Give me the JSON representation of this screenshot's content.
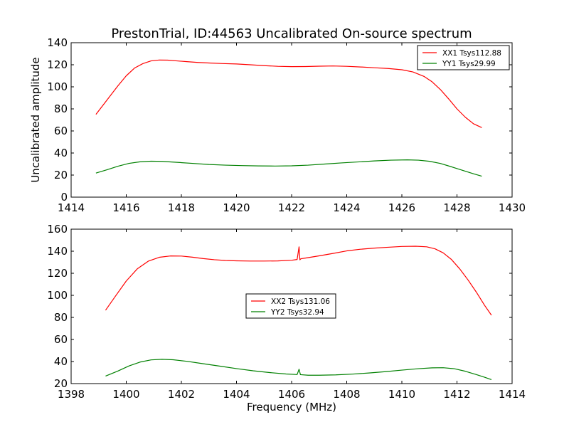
{
  "figure": {
    "title": "PrestonTrial, ID:44563 Uncalibrated On-source spectrum"
  },
  "chart_data": [
    {
      "type": "line",
      "title": "",
      "xlabel": "",
      "ylabel": "Uncalibrated amplitude",
      "xlim": [
        1414,
        1430
      ],
      "ylim": [
        0,
        140
      ],
      "xticks": [
        1414,
        1416,
        1418,
        1420,
        1422,
        1424,
        1426,
        1428,
        1430
      ],
      "yticks": [
        0,
        20,
        40,
        60,
        80,
        100,
        120,
        140
      ],
      "legend_position": "top-right",
      "grid": false,
      "series": [
        {
          "name": "XX1 Tsys112.88",
          "color": "#ff0000",
          "x": [
            1414.9,
            1415.3,
            1415.7,
            1416.0,
            1416.3,
            1416.6,
            1416.9,
            1417.2,
            1417.5,
            1417.8,
            1418.2,
            1418.6,
            1419.0,
            1419.5,
            1420.0,
            1420.5,
            1421.0,
            1421.5,
            1422.0,
            1422.5,
            1423.0,
            1423.5,
            1424.0,
            1424.5,
            1425.0,
            1425.5,
            1426.0,
            1426.4,
            1426.8,
            1427.1,
            1427.4,
            1427.7,
            1428.0,
            1428.3,
            1428.6,
            1428.9
          ],
          "y": [
            75,
            88,
            101,
            110,
            117,
            121,
            123.5,
            124.3,
            124.2,
            123.6,
            122.8,
            122.1,
            121.6,
            121.1,
            120.7,
            120.0,
            119.2,
            118.6,
            118.3,
            118.4,
            118.7,
            118.9,
            118.6,
            118.0,
            117.3,
            116.6,
            115.5,
            113.5,
            109.5,
            104.5,
            97.5,
            89,
            80,
            72.5,
            66.5,
            63
          ]
        },
        {
          "name": "YY1 Tsys29.99",
          "color": "#008000",
          "x": [
            1414.9,
            1415.3,
            1415.7,
            1416.1,
            1416.5,
            1416.9,
            1417.3,
            1417.8,
            1418.4,
            1419.0,
            1419.6,
            1420.2,
            1420.8,
            1421.4,
            1422.0,
            1422.6,
            1423.2,
            1423.8,
            1424.4,
            1425.0,
            1425.6,
            1426.2,
            1426.6,
            1427.0,
            1427.4,
            1427.8,
            1428.2,
            1428.6,
            1428.9
          ],
          "y": [
            21.8,
            24.8,
            28.0,
            30.6,
            32.0,
            32.6,
            32.4,
            31.6,
            30.6,
            29.6,
            29.0,
            28.6,
            28.3,
            28.2,
            28.4,
            29.0,
            30.0,
            31.0,
            31.9,
            32.8,
            33.5,
            33.8,
            33.5,
            32.5,
            30.5,
            27.5,
            24.3,
            21.2,
            19.0
          ]
        }
      ]
    },
    {
      "type": "line",
      "title": "",
      "xlabel": "Frequency (MHz)",
      "ylabel": "",
      "xlim": [
        1398,
        1414
      ],
      "ylim": [
        20,
        160
      ],
      "xticks": [
        1398,
        1400,
        1402,
        1404,
        1406,
        1408,
        1410,
        1412,
        1414
      ],
      "yticks": [
        20,
        40,
        60,
        80,
        100,
        120,
        140,
        160
      ],
      "legend_position": "center",
      "grid": false,
      "series": [
        {
          "name": "XX2 Tsys131.06",
          "color": "#ff0000",
          "x": [
            1399.25,
            1399.6,
            1400.0,
            1400.4,
            1400.8,
            1401.2,
            1401.6,
            1402.0,
            1402.4,
            1402.8,
            1403.2,
            1403.6,
            1404.0,
            1404.5,
            1405.0,
            1405.5,
            1406.0,
            1406.2,
            1406.27,
            1406.3,
            1406.34,
            1406.5,
            1407.0,
            1407.5,
            1408.0,
            1408.5,
            1409.0,
            1409.5,
            1410.0,
            1410.5,
            1410.9,
            1411.2,
            1411.5,
            1411.8,
            1412.1,
            1412.4,
            1412.7,
            1413.0,
            1413.25
          ],
          "y": [
            86.5,
            99,
            113,
            124,
            131,
            134.5,
            135.7,
            135.6,
            134.6,
            133.3,
            132.3,
            131.6,
            131.3,
            131.1,
            131.1,
            131.2,
            131.8,
            132.5,
            144,
            132.2,
            133.2,
            133.8,
            135.8,
            138,
            140.3,
            141.8,
            142.8,
            143.6,
            144.3,
            144.5,
            144.0,
            142.2,
            138.5,
            132.5,
            124,
            114,
            103,
            91,
            82
          ]
        },
        {
          "name": "YY2 Tsys32.94",
          "color": "#008000",
          "x": [
            1399.25,
            1399.7,
            1400.1,
            1400.5,
            1400.9,
            1401.3,
            1401.7,
            1402.2,
            1402.8,
            1403.4,
            1404.0,
            1404.6,
            1405.2,
            1405.8,
            1406.2,
            1406.27,
            1406.32,
            1406.6,
            1407.0,
            1407.6,
            1408.2,
            1408.8,
            1409.4,
            1410.0,
            1410.6,
            1411.1,
            1411.5,
            1411.9,
            1412.3,
            1412.7,
            1413.0,
            1413.25
          ],
          "y": [
            26.8,
            31.4,
            36.0,
            39.5,
            41.5,
            42.0,
            41.6,
            40.2,
            38.0,
            35.8,
            33.6,
            31.6,
            30.0,
            28.7,
            28.2,
            33.0,
            28.1,
            27.6,
            27.6,
            27.9,
            28.6,
            29.6,
            30.8,
            32.2,
            33.5,
            34.3,
            34.4,
            33.5,
            31.2,
            28.2,
            25.8,
            23.6
          ]
        }
      ]
    }
  ]
}
